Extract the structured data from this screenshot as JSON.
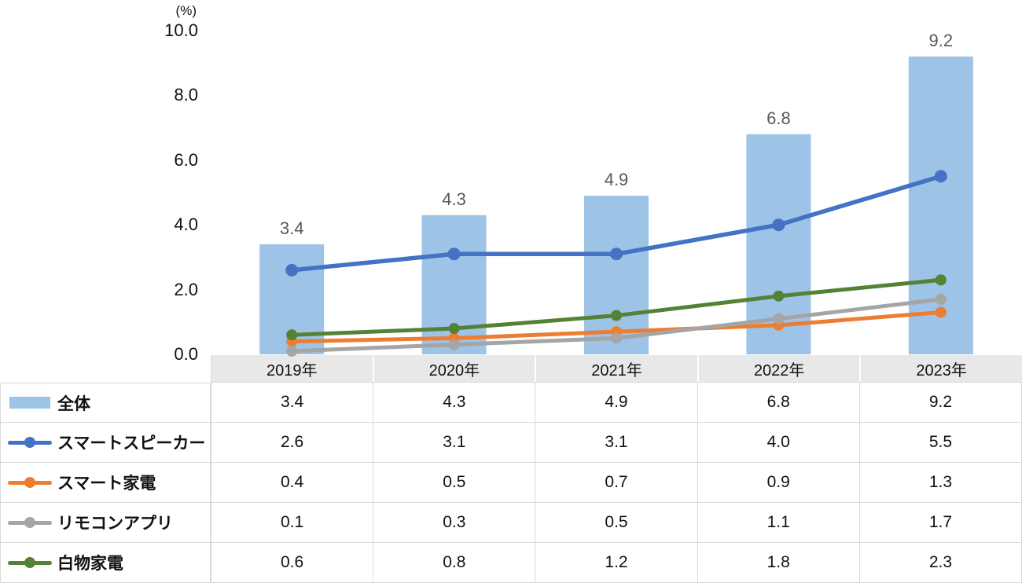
{
  "chart": {
    "unit_label": "(%)",
    "y_axis": {
      "ticks": [
        "10.0",
        "8.0",
        "6.0",
        "4.0",
        "2.0",
        "0.0"
      ]
    }
  },
  "chart_data": {
    "type": "bar+line",
    "categories": [
      "2019年",
      "2020年",
      "2021年",
      "2022年",
      "2023年"
    ],
    "bar_series": {
      "name": "全体",
      "values": [
        3.4,
        4.3,
        4.9,
        6.8,
        9.2
      ],
      "data_labels": [
        "3.4",
        "4.3",
        "4.9",
        "6.8",
        "9.2"
      ],
      "color": "#9DC3E6"
    },
    "line_series": [
      {
        "name": "スマートスピーカー",
        "values": [
          2.6,
          3.1,
          3.1,
          4.0,
          5.5
        ],
        "color": "#4472C4"
      },
      {
        "name": "スマート家電",
        "values": [
          0.4,
          0.5,
          0.7,
          0.9,
          1.3
        ],
        "color": "#ED7D31"
      },
      {
        "name": "リモコンアプリ",
        "values": [
          0.1,
          0.3,
          0.5,
          1.1,
          1.7
        ],
        "color": "#A5A5A5"
      },
      {
        "name": "白物家電",
        "values": [
          0.6,
          0.8,
          1.2,
          1.8,
          2.3
        ],
        "color": "#548235"
      }
    ],
    "ylabel": "(%)",
    "ylim": [
      0,
      10
    ],
    "y_tick_step": 2.0,
    "grid": false,
    "legend_position": "table-left",
    "data_label_color": "#595959"
  },
  "table": {
    "year_headers": [
      "2019年",
      "2020年",
      "2021年",
      "2022年",
      "2023年"
    ],
    "header_bg": "#E8E8E8",
    "border_color": "#D9D9D9",
    "rows": [
      {
        "label": "全体",
        "swatch": "bar",
        "color": "#9DC3E6",
        "values": [
          "3.4",
          "4.3",
          "4.9",
          "6.8",
          "9.2"
        ]
      },
      {
        "label": "スマートスピーカー",
        "swatch": "line",
        "color": "#4472C4",
        "values": [
          "2.6",
          "3.1",
          "3.1",
          "4.0",
          "5.5"
        ]
      },
      {
        "label": "スマート家電",
        "swatch": "line",
        "color": "#ED7D31",
        "values": [
          "0.4",
          "0.5",
          "0.7",
          "0.9",
          "1.3"
        ]
      },
      {
        "label": "リモコンアプリ",
        "swatch": "line",
        "color": "#A5A5A5",
        "values": [
          "0.1",
          "0.3",
          "0.5",
          "1.1",
          "1.7"
        ]
      },
      {
        "label": "白物家電",
        "swatch": "line",
        "color": "#548235",
        "values": [
          "0.6",
          "0.8",
          "1.2",
          "1.8",
          "2.3"
        ]
      }
    ]
  }
}
